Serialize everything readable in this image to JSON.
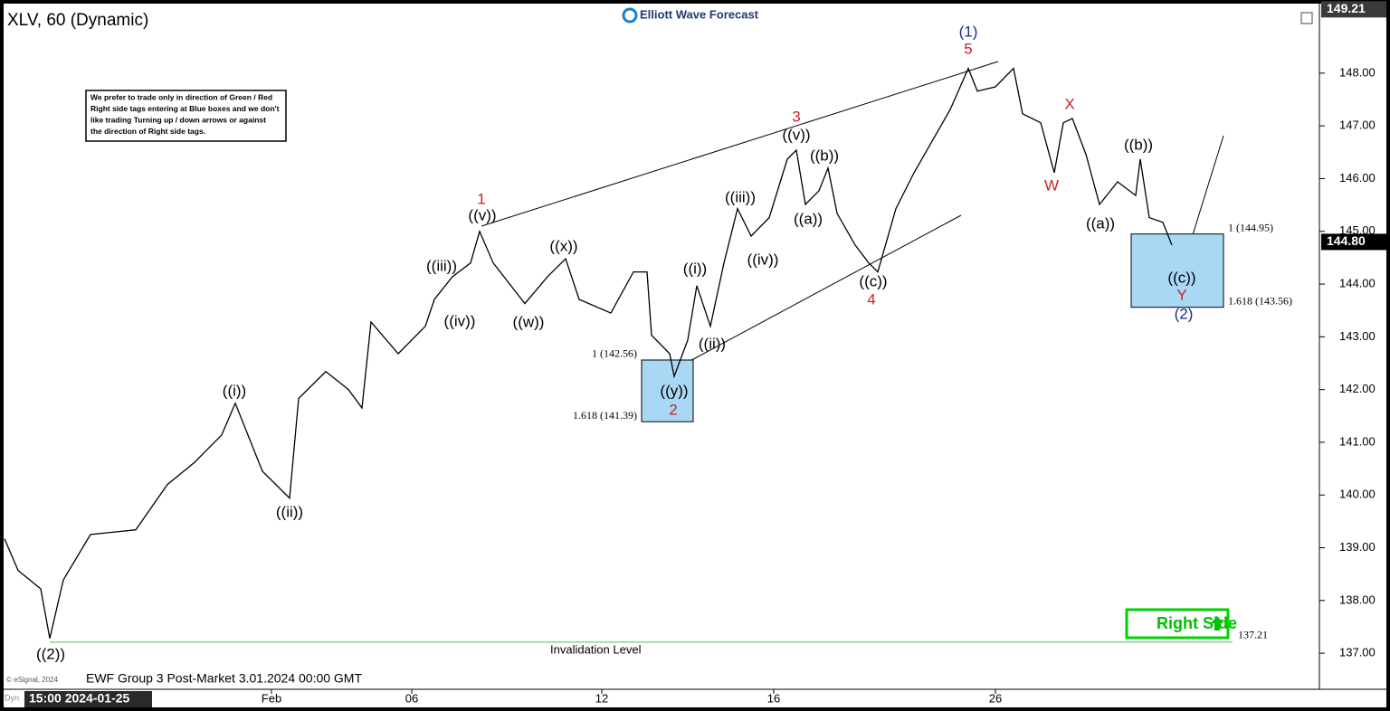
{
  "chart_data": {
    "type": "line",
    "title": "XLV, 60 (Dynamic)",
    "logo": "Elliott Wave Forecast",
    "note": [
      "We prefer to trade only in direction of Green / Red",
      "Right side tags entering at Blue boxes and we don't",
      "like trading Turning up / down arrows or against",
      "the direction of Right side tags."
    ],
    "footer": "EWF Group 3 Post-Market 3.01.2024 00:00 GMT",
    "copyright": "© eSignal, 2024",
    "corner_label": "Dyn",
    "cursor_label": "15:00 2024-01-25",
    "right_side": "Right Side",
    "color": "#000000",
    "x": [
      0,
      3,
      8,
      10,
      13,
      19,
      29,
      36,
      42,
      48,
      51,
      57,
      63,
      65,
      71,
      76,
      79,
      81,
      87,
      93,
      95,
      99,
      103,
      105,
      108,
      115,
      120,
      124,
      127,
      134,
      139,
      142,
      143,
      147,
      148,
      151,
      153,
      156,
      159,
      162,
      165,
      169,
      173,
      175,
      177,
      180,
      182,
      184,
      188,
      191,
      193,
      197,
      201,
      205,
      209,
      213,
      215,
      219,
      223,
      225,
      229,
      232,
      234,
      236,
      239,
      242,
      246,
      250,
      251,
      253,
      256,
      258
    ],
    "values": [
      139.17,
      138.57,
      138.22,
      137.28,
      138.39,
      139.25,
      139.34,
      140.2,
      140.62,
      141.14,
      141.74,
      140.45,
      139.94,
      141.83,
      142.34,
      142.0,
      141.65,
      143.28,
      142.68,
      143.2,
      143.71,
      144.14,
      144.4,
      145.0,
      144.4,
      143.63,
      144.14,
      144.48,
      143.71,
      143.45,
      144.23,
      144.23,
      143.03,
      142.68,
      142.25,
      142.94,
      143.97,
      143.2,
      144.4,
      145.43,
      144.91,
      145.26,
      146.37,
      146.54,
      145.51,
      145.77,
      146.2,
      145.34,
      144.74,
      144.4,
      144.23,
      145.43,
      146.11,
      146.71,
      147.31,
      148.09,
      147.66,
      147.74,
      148.09,
      147.23,
      147.06,
      146.11,
      147.06,
      147.14,
      146.46,
      145.51,
      145.94,
      145.68,
      146.37,
      145.26,
      145.17,
      144.74
    ],
    "xlim": [
      0,
      290
    ],
    "xticks": [
      {
        "value": 59,
        "label": "Feb"
      },
      {
        "value": 90,
        "label": "06"
      },
      {
        "value": 132,
        "label": "12"
      },
      {
        "value": 170,
        "label": "16"
      },
      {
        "value": 219,
        "label": "26"
      }
    ],
    "ylim": [
      136.35,
      149.25
    ],
    "yticks": [
      {
        "value": 137,
        "label": "137.00"
      },
      {
        "value": 138,
        "label": "138.00"
      },
      {
        "value": 139,
        "label": "139.00"
      },
      {
        "value": 140,
        "label": "140.00"
      },
      {
        "value": 141,
        "label": "141.00"
      },
      {
        "value": 142,
        "label": "142.00"
      },
      {
        "value": 143,
        "label": "143.00"
      },
      {
        "value": 144,
        "label": "144.00"
      },
      {
        "value": 145,
        "label": "145.00"
      },
      {
        "value": 146,
        "label": "146.00"
      },
      {
        "value": 147,
        "label": "147.00"
      },
      {
        "value": 148,
        "label": "148.00"
      }
    ],
    "top_price": 149.21,
    "last_price": {
      "value": 144.8,
      "label": "144.80"
    },
    "invalidation": {
      "value": 137.21,
      "label": "Invalidation Level"
    },
    "zones": [
      {
        "top": 142.56,
        "bottom": 141.39,
        "top_label": "1 (142.56)",
        "bottom_label": "1.618 (141.39)"
      },
      {
        "top": 144.95,
        "bottom": 143.56,
        "top_label": "1 (144.95)",
        "bottom_label": "1.618 (143.56)"
      }
    ],
    "annotations": [
      {
        "text": "((2))",
        "color": "#000000"
      },
      {
        "text": "((i))",
        "color": "#000000"
      },
      {
        "text": "((ii))",
        "color": "#000000"
      },
      {
        "text": "((iii))",
        "color": "#000000"
      },
      {
        "text": "((iv))",
        "color": "#000000"
      },
      {
        "text": "1",
        "color": "#c8202a"
      },
      {
        "text": "((v))",
        "color": "#000000"
      },
      {
        "text": "((w))",
        "color": "#000000"
      },
      {
        "text": "((x))",
        "color": "#000000"
      },
      {
        "text": "((y))",
        "color": "#000000"
      },
      {
        "text": "2",
        "color": "#c8202a"
      },
      {
        "text": "((i))",
        "color": "#000000"
      },
      {
        "text": "((ii))",
        "color": "#000000"
      },
      {
        "text": "((iii))",
        "color": "#000000"
      },
      {
        "text": "((iv))",
        "color": "#000000"
      },
      {
        "text": "3",
        "color": "#c8202a"
      },
      {
        "text": "((v))",
        "color": "#000000"
      },
      {
        "text": "((b))",
        "color": "#000000"
      },
      {
        "text": "((a))",
        "color": "#000000"
      },
      {
        "text": "((c))",
        "color": "#000000"
      },
      {
        "text": "4",
        "color": "#c8202a"
      },
      {
        "text": "(1)",
        "color": "#1a2a9a"
      },
      {
        "text": "5",
        "color": "#c8202a"
      },
      {
        "text": "W",
        "color": "#c8202a"
      },
      {
        "text": "X",
        "color": "#c8202a"
      },
      {
        "text": "((a))",
        "color": "#000000"
      },
      {
        "text": "((b))",
        "color": "#000000"
      },
      {
        "text": "((c))",
        "color": "#000000"
      },
      {
        "text": "Y",
        "color": "#c8202a"
      },
      {
        "text": "(2)",
        "color": "#1a2a9a"
      }
    ]
  }
}
